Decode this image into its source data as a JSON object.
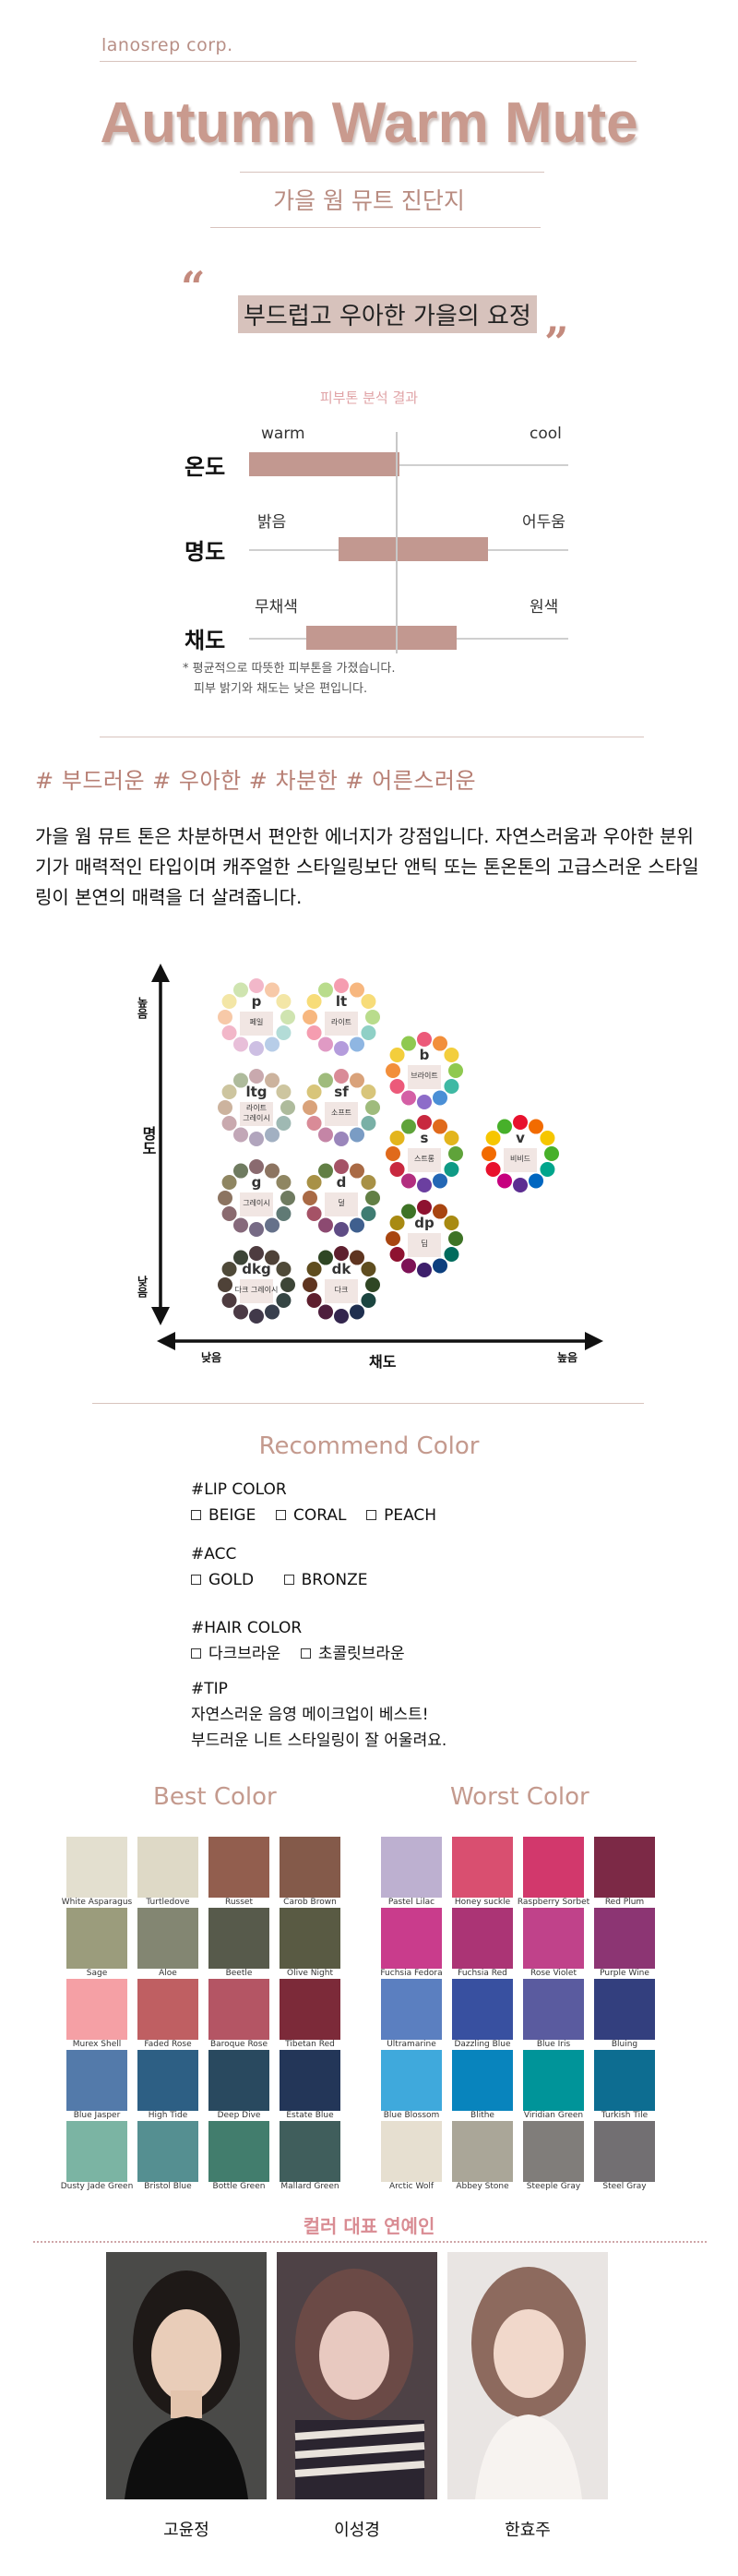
{
  "brand": "lanosrep corp.",
  "title": "Autumn Warm Mute",
  "subtitle": "가을 웜 뮤트 진단지",
  "quote": "부드럽고 우아한 가을의 요정",
  "skin_analysis": {
    "caption": "피부톤 분석 결과",
    "scales": [
      {
        "name": "온도",
        "left_label": "warm",
        "right_label": "cool",
        "range": [
          0.0,
          0.47
        ]
      },
      {
        "name": "명도",
        "left_label": "밝음",
        "right_label": "어두움",
        "range": [
          0.28,
          0.75
        ]
      },
      {
        "name": "채도",
        "left_label": "무채색",
        "right_label": "원색",
        "range": [
          0.18,
          0.65
        ]
      }
    ],
    "notes": [
      "* 평균적으로 따뜻한 피부톤을 가졌습니다.",
      "피부 밝기와 채도는 낮은 편입니다."
    ]
  },
  "tags": "# 부드러운  # 우아한  # 차분한  # 어른스러운",
  "description": "가을 웜 뮤트 톤은 차분하면서 편안한 에너지가 강점입니다. 자연스러움과 우아한 분위기가 매력적인 타입이며 캐주얼한 스타일링보단 앤틱 또는 톤온톤의 고급스러운 스타일링이 본연의 매력을 더 살려줍니다.",
  "tone_chart": {
    "y_axis": {
      "title": "명도",
      "high": "높음",
      "low": "낮음"
    },
    "x_axis": {
      "title": "채도",
      "low": "낮음",
      "high": "높음"
    },
    "tones": [
      {
        "code": "p",
        "name": "페일",
        "colors": [
          "#f2b7c9",
          "#f7c9a8",
          "#f3e6a6",
          "#cfe4b0",
          "#b3dcd7",
          "#b7cde8",
          "#cdbfe3",
          "#e8bfd9"
        ]
      },
      {
        "code": "lt",
        "name": "라이트",
        "colors": [
          "#f59db0",
          "#f7b77f",
          "#f7dc79",
          "#b9dc8c",
          "#8fd0c6",
          "#8fb6e2",
          "#b49cdc",
          "#e09ac4"
        ]
      },
      {
        "code": "b",
        "name": "브라이트",
        "colors": [
          "#ec5a7a",
          "#f28f3b",
          "#f3ce3c",
          "#8fc950",
          "#3fb9a4",
          "#4a8fd6",
          "#8d6cc9",
          "#d45fa5"
        ]
      },
      {
        "code": "ltg",
        "name": "라이트\n그레이시",
        "colors": [
          "#c9a9ae",
          "#ccb39e",
          "#cdc59f",
          "#aebb9c",
          "#9fb9b3",
          "#a2b0c2",
          "#b1a5bd",
          "#c2a7b7"
        ]
      },
      {
        "code": "sf",
        "name": "소프트",
        "colors": [
          "#d98b97",
          "#d9a27a",
          "#d8c57a",
          "#9fbb7c",
          "#79b0a6",
          "#7a9cc4",
          "#9a86bb",
          "#c485a6"
        ]
      },
      {
        "code": "s",
        "name": "스트롱",
        "colors": [
          "#c8283f",
          "#e06a1c",
          "#e3b51d",
          "#5fa33a",
          "#0f9a85",
          "#2367b5",
          "#6b3fa0",
          "#b22e7f"
        ]
      },
      {
        "code": "v",
        "name": "비비드",
        "colors": [
          "#e8112d",
          "#f26b00",
          "#f6c600",
          "#47b02a",
          "#00a58c",
          "#0066c0",
          "#5c2d91",
          "#c6007e"
        ]
      },
      {
        "code": "g",
        "name": "그레이시",
        "colors": [
          "#8a6a6f",
          "#8c7461",
          "#8f8662",
          "#6f7b60",
          "#607a75",
          "#65718a",
          "#766a85",
          "#86697b"
        ]
      },
      {
        "code": "d",
        "name": "덜",
        "colors": [
          "#a55266",
          "#a96a45",
          "#a89146",
          "#627f45",
          "#3f7c72",
          "#3f5f8e",
          "#5f4c85",
          "#8c4a71"
        ]
      },
      {
        "code": "dp",
        "name": "딥",
        "colors": [
          "#8e1230",
          "#a84510",
          "#a88a12",
          "#3e7326",
          "#006b5d",
          "#0c3f7e",
          "#3d1f6b",
          "#7d1256"
        ]
      },
      {
        "code": "dkg",
        "name": "다크 그레이시",
        "colors": [
          "#4e3c40",
          "#4f4238",
          "#4f4a39",
          "#3d4537",
          "#354543",
          "#383f4d",
          "#41394a",
          "#4b3a45"
        ]
      },
      {
        "code": "dk",
        "name": "다크",
        "colors": [
          "#5e1f2e",
          "#5f3520",
          "#5f4d1f",
          "#2f4624",
          "#1b4540",
          "#1f2f4f",
          "#33254d",
          "#4e1f3d"
        ]
      }
    ]
  },
  "recommend": {
    "title": "Recommend Color",
    "lip_title": "#LIP COLOR",
    "lip": [
      "BEIGE",
      "CORAL",
      "PEACH"
    ],
    "acc_title": "#ACC",
    "acc": [
      "GOLD",
      "BRONZE"
    ],
    "hair_title": "#HAIR COLOR",
    "hair": [
      "다크브라운",
      "초콜릿브라운"
    ],
    "tip_title": "#TIP",
    "tip": [
      "자연스러운 음영 메이크업이 베스트!",
      "부드러운 니트 스타일링이 잘 어울려요."
    ]
  },
  "best": {
    "title": "Best Color",
    "swatches": [
      {
        "name": "White Asparagus",
        "color": "#e3dfcf"
      },
      {
        "name": "Turtledove",
        "color": "#ded9c6"
      },
      {
        "name": "Russet",
        "color": "#925e4e"
      },
      {
        "name": "Carob Brown",
        "color": "#845a4a"
      },
      {
        "name": "Sage",
        "color": "#9b9c7c"
      },
      {
        "name": "Aloe",
        "color": "#838672"
      },
      {
        "name": "Beetle",
        "color": "#575a4b"
      },
      {
        "name": "Olive Night",
        "color": "#595a43"
      },
      {
        "name": "Murex Shell",
        "color": "#f5a0a5"
      },
      {
        "name": "Faded Rose",
        "color": "#bf5f62"
      },
      {
        "name": "Baroque Rose",
        "color": "#b45564"
      },
      {
        "name": "Tibetan Red",
        "color": "#7c2a39"
      },
      {
        "name": "Blue Jasper",
        "color": "#537aaa"
      },
      {
        "name": "High Tide",
        "color": "#2d5f84"
      },
      {
        "name": "Deep Dive",
        "color": "#29495f"
      },
      {
        "name": "Estate Blue",
        "color": "#233658"
      },
      {
        "name": "Dusty Jade Green",
        "color": "#7bb4a3"
      },
      {
        "name": "Bristol Blue",
        "color": "#558f91"
      },
      {
        "name": "Bottle Green",
        "color": "#427d6d"
      },
      {
        "name": "Mallard Green",
        "color": "#405e5c"
      }
    ]
  },
  "worst": {
    "title": "Worst Color",
    "swatches": [
      {
        "name": "Pastel Lilac",
        "color": "#bdb0d0"
      },
      {
        "name": "Honey suckle",
        "color": "#d94f70"
      },
      {
        "name": "Raspberry Sorbet",
        "color": "#d2386c"
      },
      {
        "name": "Red Plum",
        "color": "#7c2946"
      },
      {
        "name": "Fuchsia Fedora",
        "color": "#c93c8c"
      },
      {
        "name": "Fuchsia Red",
        "color": "#ab3475"
      },
      {
        "name": "Rose Violet",
        "color": "#c0428a"
      },
      {
        "name": "Purple Wine",
        "color": "#8c3573"
      },
      {
        "name": "Ultramarine",
        "color": "#5b7fc0"
      },
      {
        "name": "Dazzling Blue",
        "color": "#3850a0"
      },
      {
        "name": "Blue Iris",
        "color": "#5a5b9f"
      },
      {
        "name": "Bluing",
        "color": "#333f7e"
      },
      {
        "name": "Blue Blossom",
        "color": "#3fa9dc"
      },
      {
        "name": "Blithe",
        "color": "#0884bd"
      },
      {
        "name": "Viridian Green",
        "color": "#009499"
      },
      {
        "name": "Turkish Tile",
        "color": "#0d6d91"
      },
      {
        "name": "Arctic Wolf",
        "color": "#e6dfd0"
      },
      {
        "name": "Abbey Stone",
        "color": "#aaa698"
      },
      {
        "name": "Steeple Gray",
        "color": "#807d7a"
      },
      {
        "name": "Steel Gray",
        "color": "#726f72"
      }
    ]
  },
  "celebrities": {
    "title": "컬러 대표 연예인",
    "people": [
      "고윤정",
      "이성경",
      "한효주"
    ]
  }
}
